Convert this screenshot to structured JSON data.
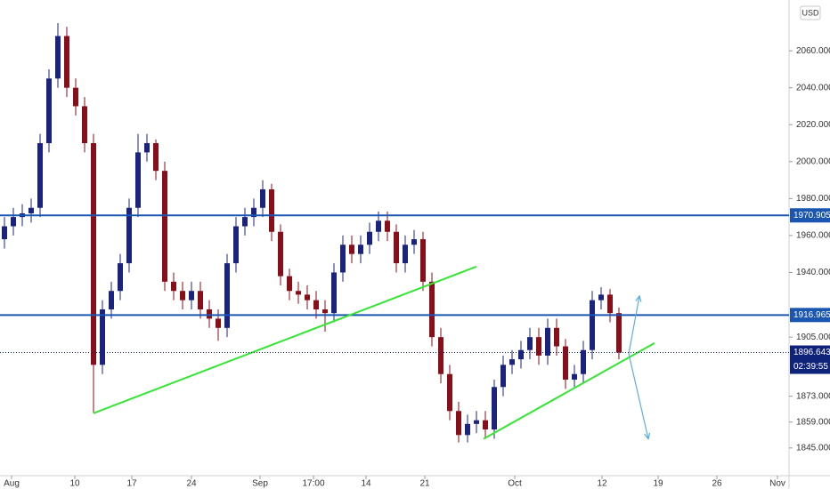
{
  "chart_data": {
    "type": "candlestick",
    "currency": "USD",
    "x": [
      0,
      1,
      2,
      3,
      4,
      5,
      6,
      7,
      8,
      9,
      10,
      11,
      12,
      13,
      14,
      15,
      16,
      17,
      18,
      19,
      20,
      21,
      22,
      23,
      24,
      25,
      26,
      27,
      28,
      29,
      30,
      31,
      32,
      33,
      34,
      35,
      36,
      37,
      38,
      39,
      40,
      41,
      42,
      43,
      44,
      45,
      46,
      47,
      48,
      49,
      50,
      51,
      52,
      53,
      54,
      55,
      56,
      57,
      58,
      59,
      60,
      61,
      62,
      63,
      64,
      65,
      66,
      67,
      68,
      69
    ],
    "open": [
      1958,
      1965,
      1970,
      1972,
      1975,
      2010,
      2045,
      2068,
      2040,
      2030,
      2010,
      1890,
      1920,
      1930,
      1945,
      1975,
      2005,
      2010,
      1995,
      1935,
      1930,
      1925,
      1930,
      1920,
      1915,
      1910,
      1945,
      1965,
      1970,
      1975,
      1985,
      1962,
      1938,
      1930,
      1928,
      1925,
      1920,
      1918,
      1940,
      1955,
      1950,
      1955,
      1962,
      1968,
      1962,
      1945,
      1955,
      1958,
      1935,
      1905,
      1885,
      1865,
      1852,
      1858,
      1860,
      1855,
      1878,
      1890,
      1893,
      1898,
      1905,
      1895,
      1910,
      1900,
      1882,
      1885,
      1898,
      1925,
      1928,
      1918
    ],
    "high": [
      1970,
      1975,
      1977,
      1980,
      2015,
      2050,
      2075,
      2073,
      2045,
      2035,
      2015,
      1925,
      1935,
      1950,
      1980,
      2015,
      2015,
      2012,
      2000,
      1940,
      1935,
      1935,
      1935,
      1925,
      1920,
      1950,
      1970,
      1975,
      1980,
      1990,
      1988,
      1966,
      1942,
      1935,
      1933,
      1930,
      1925,
      1945,
      1960,
      1960,
      1960,
      1967,
      1973,
      1973,
      1966,
      1960,
      1963,
      1962,
      1940,
      1910,
      1890,
      1870,
      1863,
      1865,
      1865,
      1882,
      1895,
      1898,
      1903,
      1910,
      1910,
      1915,
      1915,
      1904,
      1890,
      1903,
      1930,
      1932,
      1931,
      1921
    ],
    "low": [
      1953,
      1960,
      1965,
      1967,
      1970,
      2005,
      2040,
      2035,
      2025,
      2005,
      1864,
      1885,
      1915,
      1925,
      1940,
      1970,
      2000,
      1990,
      1930,
      1925,
      1920,
      1920,
      1915,
      1910,
      1903,
      1905,
      1940,
      1960,
      1965,
      1970,
      1957,
      1933,
      1925,
      1923,
      1920,
      1915,
      1908,
      1913,
      1935,
      1945,
      1945,
      1950,
      1957,
      1957,
      1940,
      1940,
      1950,
      1930,
      1900,
      1880,
      1860,
      1848,
      1848,
      1853,
      1850,
      1850,
      1873,
      1885,
      1888,
      1893,
      1890,
      1890,
      1895,
      1877,
      1878,
      1880,
      1893,
      1920,
      1913,
      1893
    ],
    "close": [
      1965,
      1970,
      1972,
      1975,
      2010,
      2045,
      2068,
      2040,
      2030,
      2010,
      1890,
      1920,
      1930,
      1945,
      1975,
      2005,
      2010,
      1995,
      1935,
      1930,
      1925,
      1930,
      1920,
      1915,
      1910,
      1945,
      1965,
      1970,
      1975,
      1985,
      1962,
      1938,
      1930,
      1928,
      1925,
      1920,
      1918,
      1940,
      1955,
      1950,
      1955,
      1962,
      1968,
      1962,
      1945,
      1955,
      1958,
      1935,
      1905,
      1885,
      1865,
      1852,
      1858,
      1860,
      1855,
      1878,
      1890,
      1893,
      1898,
      1905,
      1895,
      1910,
      1900,
      1882,
      1885,
      1898,
      1925,
      1928,
      1918,
      1896.643
    ],
    "up_color": "#1a237e",
    "down_color": "#880e1a",
    "xlim": [
      -0.5,
      88
    ],
    "xticks": [
      {
        "value": 0.8,
        "label": "Aug"
      },
      {
        "value": 7.9,
        "label": "10"
      },
      {
        "value": 14.3,
        "label": "17"
      },
      {
        "value": 21,
        "label": "24"
      },
      {
        "value": 28.7,
        "label": "Sep"
      },
      {
        "value": 34.7,
        "label": "17:00"
      },
      {
        "value": 40.6,
        "label": "14"
      },
      {
        "value": 47.2,
        "label": "21"
      },
      {
        "value": 57.3,
        "label": "Oct"
      },
      {
        "value": 67.1,
        "label": "12"
      },
      {
        "value": 73.4,
        "label": "19"
      },
      {
        "value": 80,
        "label": "26"
      },
      {
        "value": 86.8,
        "label": "Nov"
      }
    ],
    "ylim": [
      1830,
      2087.5
    ],
    "yticks": [
      {
        "value": 2060,
        "label": "2060.000"
      },
      {
        "value": 2040,
        "label": "2040.000"
      },
      {
        "value": 2020,
        "label": "2020.000"
      },
      {
        "value": 2000,
        "label": "2000.000"
      },
      {
        "value": 1980,
        "label": "1980.000"
      },
      {
        "value": 1960,
        "label": "1960.000"
      },
      {
        "value": 1940,
        "label": "1940.000"
      },
      {
        "value": 1905,
        "label": "1905.000"
      },
      {
        "value": 1873,
        "label": "1873.000"
      },
      {
        "value": 1859,
        "label": "1859.000"
      },
      {
        "value": 1845,
        "label": "1845.000"
      }
    ],
    "hlines": [
      {
        "value": 1970.905,
        "color": "#1a56b0"
      },
      {
        "value": 1916.965,
        "color": "#1a56b0"
      }
    ],
    "current": {
      "value": 1896.643,
      "timer": "02:39:55",
      "color": "#10237a"
    },
    "trendlines": [
      {
        "x": [
          10,
          53
        ],
        "y": [
          1863.8,
          1943.2
        ],
        "color": "#33e633"
      },
      {
        "x": [
          53.8,
          73
        ],
        "y": [
          1849.9,
          1901.8
        ],
        "color": "#33e633"
      }
    ],
    "arrows": [
      {
        "x": [
          70.1,
          71.3
        ],
        "y": [
          1896,
          1927.3
        ],
        "color": "#5aaee0"
      },
      {
        "x": [
          70.1,
          72.3
        ],
        "y": [
          1896,
          1849.9
        ],
        "color": "#5aaee0"
      }
    ]
  }
}
